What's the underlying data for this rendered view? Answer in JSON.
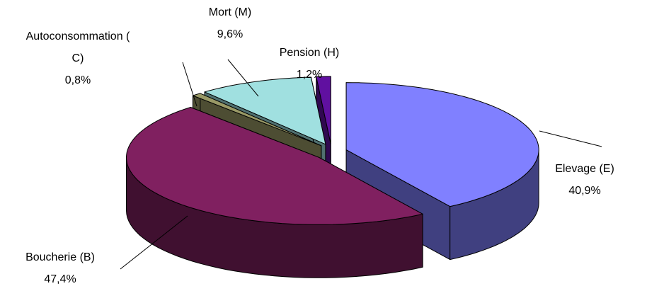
{
  "chart_data": {
    "type": "pie3d",
    "categories": [
      "Elevage (E)",
      "Boucherie (B)",
      "Autoconsommation ( C)",
      "Mort (M)",
      "Pension (H)"
    ],
    "values": [
      40.9,
      47.4,
      0.8,
      9.6,
      1.2
    ],
    "value_labels": [
      "40,9%",
      "47,4%",
      "0,8%",
      "9,6%",
      "1,2%"
    ],
    "colors": [
      "#8080ff",
      "#802060",
      "#999966",
      "#a0e0e0",
      "#6010a0"
    ]
  }
}
